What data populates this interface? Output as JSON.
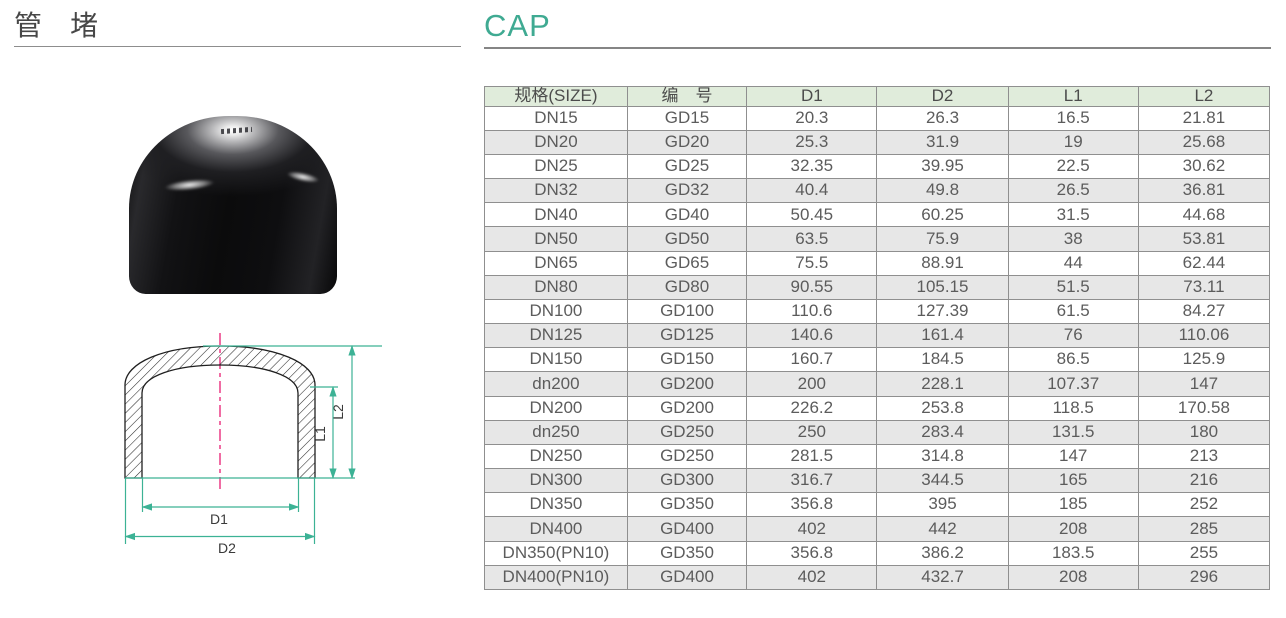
{
  "left_panel": {
    "title": "管　堵"
  },
  "right_panel": {
    "title": "CAP"
  },
  "drawing": {
    "labels": {
      "d1": "D1",
      "d2": "D2",
      "l1": "L1",
      "l2": "L2"
    }
  },
  "table": {
    "columns": [
      "规格(SIZE)",
      "编　号",
      "D1",
      "D2",
      "L1",
      "L2"
    ],
    "rows": [
      [
        "DN15",
        "GD15",
        "20.3",
        "26.3",
        "16.5",
        "21.81"
      ],
      [
        "DN20",
        "GD20",
        "25.3",
        "31.9",
        "19",
        "25.68"
      ],
      [
        "DN25",
        "GD25",
        "32.35",
        "39.95",
        "22.5",
        "30.62"
      ],
      [
        "DN32",
        "GD32",
        "40.4",
        "49.8",
        "26.5",
        "36.81"
      ],
      [
        "DN40",
        "GD40",
        "50.45",
        "60.25",
        "31.5",
        "44.68"
      ],
      [
        "DN50",
        "GD50",
        "63.5",
        "75.9",
        "38",
        "53.81"
      ],
      [
        "DN65",
        "GD65",
        "75.5",
        "88.91",
        "44",
        "62.44"
      ],
      [
        "DN80",
        "GD80",
        "90.55",
        "105.15",
        "51.5",
        "73.11"
      ],
      [
        "DN100",
        "GD100",
        "110.6",
        "127.39",
        "61.5",
        "84.27"
      ],
      [
        "DN125",
        "GD125",
        "140.6",
        "161.4",
        "76",
        "110.06"
      ],
      [
        "DN150",
        "GD150",
        "160.7",
        "184.5",
        "86.5",
        "125.9"
      ],
      [
        "dn200",
        "GD200",
        "200",
        "228.1",
        "107.37",
        "147"
      ],
      [
        "DN200",
        "GD200",
        "226.2",
        "253.8",
        "118.5",
        "170.58"
      ],
      [
        "dn250",
        "GD250",
        "250",
        "283.4",
        "131.5",
        "180"
      ],
      [
        "DN250",
        "GD250",
        "281.5",
        "314.8",
        "147",
        "213"
      ],
      [
        "DN300",
        "GD300",
        "316.7",
        "344.5",
        "165",
        "216"
      ],
      [
        "DN350",
        "GD350",
        "356.8",
        "395",
        "185",
        "252"
      ],
      [
        "DN400",
        "GD400",
        "402",
        "442",
        "208",
        "285"
      ],
      [
        "DN350(PN10)",
        "GD350",
        "356.8",
        "386.2",
        "183.5",
        "255"
      ],
      [
        "DN400(PN10)",
        "GD400",
        "402",
        "432.7",
        "208",
        "296"
      ]
    ]
  },
  "colors": {
    "accent_green": "#3faa92",
    "table_header_bg": "#e0ecdb",
    "table_row_alt": "#e7e7e7",
    "table_border": "#8f8f8f",
    "dimension_line": "#3cb295",
    "centerline_pink": "#ec3c86"
  }
}
